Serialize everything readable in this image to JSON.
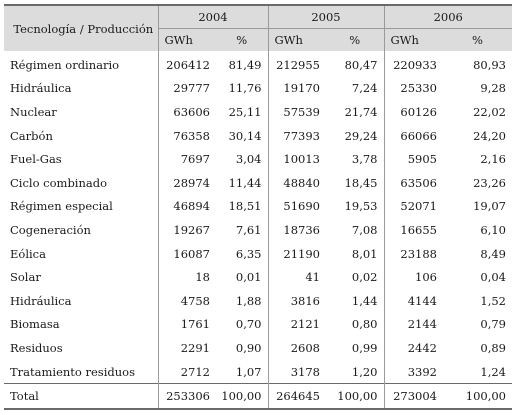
{
  "table": {
    "header_label": "Tecnología / Producción",
    "years": [
      "2004",
      "2005",
      "2006"
    ],
    "unit_gwh": "GWh",
    "unit_pct": "%",
    "rows": [
      {
        "label": "Régimen ordinario",
        "v": [
          "206412",
          "81,49",
          "212955",
          "80,47",
          "220933",
          "80,93"
        ]
      },
      {
        "label": "Hidráulica",
        "v": [
          "29777",
          "11,76",
          "19170",
          "7,24",
          "25330",
          "9,28"
        ]
      },
      {
        "label": "Nuclear",
        "v": [
          "63606",
          "25,11",
          "57539",
          "21,74",
          "60126",
          "22,02"
        ]
      },
      {
        "label": "Carbón",
        "v": [
          "76358",
          "30,14",
          "77393",
          "29,24",
          "66066",
          "24,20"
        ]
      },
      {
        "label": "Fuel-Gas",
        "v": [
          "7697",
          "3,04",
          "10013",
          "3,78",
          "5905",
          "2,16"
        ]
      },
      {
        "label": "Ciclo combinado",
        "v": [
          "28974",
          "11,44",
          "48840",
          "18,45",
          "63506",
          "23,26"
        ]
      },
      {
        "label": "Régimen especial",
        "v": [
          "46894",
          "18,51",
          "51690",
          "19,53",
          "52071",
          "19,07"
        ]
      },
      {
        "label": "Cogeneración",
        "v": [
          "19267",
          "7,61",
          "18736",
          "7,08",
          "16655",
          "6,10"
        ]
      },
      {
        "label": "Eólica",
        "v": [
          "16087",
          "6,35",
          "21190",
          "8,01",
          "23188",
          "8,49"
        ]
      },
      {
        "label": "Solar",
        "v": [
          "18",
          "0,01",
          "41",
          "0,02",
          "106",
          "0,04"
        ]
      },
      {
        "label": "Hidráulica",
        "v": [
          "4758",
          "1,88",
          "3816",
          "1,44",
          "4144",
          "1,52"
        ]
      },
      {
        "label": "Biomasa",
        "v": [
          "1761",
          "0,70",
          "2121",
          "0,80",
          "2144",
          "0,79"
        ]
      },
      {
        "label": "Residuos",
        "v": [
          "2291",
          "0,90",
          "2608",
          "0,99",
          "2442",
          "0,89"
        ]
      },
      {
        "label": "Tratamiento residuos",
        "v": [
          "2712",
          "1,07",
          "3178",
          "1,20",
          "3392",
          "1,24"
        ]
      },
      {
        "label": "Total",
        "v": [
          "253306",
          "100,00",
          "264645",
          "100,00",
          "273004",
          "100,00"
        ]
      }
    ]
  }
}
